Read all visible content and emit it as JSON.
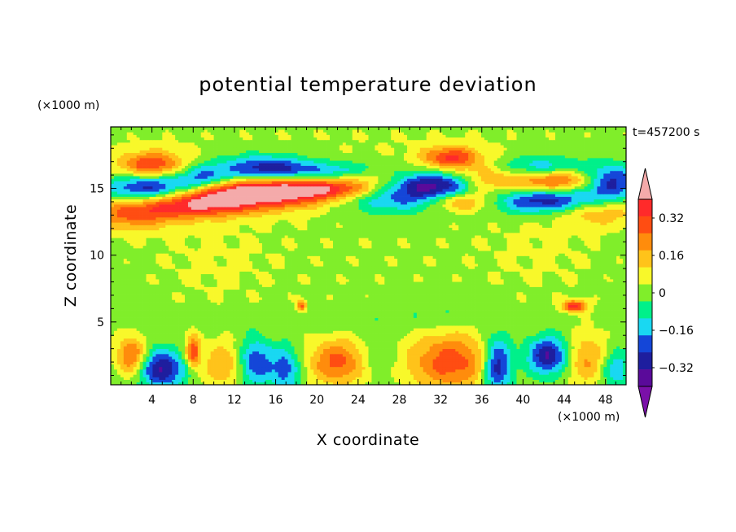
{
  "chart_data": {
    "type": "heatmap",
    "title": "potential temperature deviation",
    "xlabel": "X coordinate",
    "ylabel": "Z coordinate",
    "x_unit": "(×1000 m)",
    "y_unit": "(×1000 m)",
    "time_label": "t=457200 s",
    "xlim": [
      0,
      50
    ],
    "ylim": [
      0.3,
      19.6
    ],
    "x_ticks": [
      4,
      8,
      12,
      16,
      20,
      24,
      28,
      32,
      36,
      40,
      44,
      48
    ],
    "y_ticks": [
      5,
      10,
      15
    ],
    "colorbar": {
      "levels": [
        -0.48,
        -0.4,
        -0.32,
        -0.24,
        -0.16,
        -0.08,
        0,
        0.08,
        0.16,
        0.24,
        0.32,
        0.4,
        0.48
      ],
      "colors": [
        "#7a10a8",
        "#5a0a9a",
        "#1e1e9e",
        "#1446d8",
        "#19d8f2",
        "#00f08a",
        "#80ee2a",
        "#f8f82a",
        "#ffc31a",
        "#ff8c0c",
        "#ff4d12",
        "#ff2a2a",
        "#f4aaaa"
      ],
      "labels": [
        "0.32",
        "0.16",
        "0",
        "−0.16",
        "−0.32"
      ],
      "label_values": [
        0.32,
        0.16,
        0,
        -0.16,
        -0.32
      ]
    },
    "features": [
      {
        "x": 25,
        "z": 10,
        "sx": 30,
        "sz": 5,
        "a": 0.03
      },
      {
        "x": 10,
        "z": 9.5,
        "sx": 4,
        "sz": 2.5,
        "a": 0.025
      },
      {
        "x": 42,
        "z": 10.5,
        "sx": 4,
        "sz": 2.5,
        "a": 0.025
      },
      {
        "x": 25,
        "z": 18.5,
        "sx": 30,
        "sz": 1.2,
        "a": 0.03
      },
      {
        "x": 32,
        "z": 6,
        "sx": 3,
        "sz": 0.8,
        "a": -0.06
      },
      {
        "x": 22,
        "z": 5,
        "sx": 8,
        "sz": 0.5,
        "a": -0.05
      },
      {
        "x": 4,
        "z": 16.8,
        "sx": 2.2,
        "sz": 0.7,
        "a": 0.35
      },
      {
        "x": 4,
        "z": 15,
        "sx": 3,
        "sz": 0.7,
        "a": -0.45
      },
      {
        "x": 9,
        "z": 15.7,
        "sx": 2,
        "sz": 0.7,
        "a": -0.3
      },
      {
        "x": 14,
        "z": 14.7,
        "sx": 6,
        "sz": 0.8,
        "a": 0.55
      },
      {
        "x": 8,
        "z": 13.7,
        "sx": 4,
        "sz": 0.7,
        "a": 0.3
      },
      {
        "x": 2,
        "z": 13,
        "sx": 3,
        "sz": 0.8,
        "a": 0.25
      },
      {
        "x": 15,
        "z": 16.5,
        "sx": 3,
        "sz": 0.7,
        "a": -0.35
      },
      {
        "x": 22,
        "z": 16.3,
        "sx": 4,
        "sz": 0.5,
        "a": -0.2
      },
      {
        "x": 22,
        "z": 15,
        "sx": 4,
        "sz": 0.5,
        "a": 0.25
      },
      {
        "x": 27,
        "z": 14.3,
        "sx": 4,
        "sz": 0.8,
        "a": -0.25
      },
      {
        "x": 26,
        "z": 16,
        "sx": 2.5,
        "sz": 0.5,
        "a": 0.15
      },
      {
        "x": 33,
        "z": 17.3,
        "sx": 2,
        "sz": 0.6,
        "a": 0.35
      },
      {
        "x": 32,
        "z": 15.3,
        "sx": 3.5,
        "sz": 0.7,
        "a": -0.42
      },
      {
        "x": 36,
        "z": 15.5,
        "sx": 2.5,
        "sz": 0.8,
        "a": 0.3
      },
      {
        "x": 34,
        "z": 14,
        "sx": 2,
        "sz": 0.5,
        "a": 0.25
      },
      {
        "x": 42,
        "z": 16.5,
        "sx": 3,
        "sz": 0.6,
        "a": -0.3
      },
      {
        "x": 43,
        "z": 15.7,
        "sx": 3,
        "sz": 0.7,
        "a": 0.38
      },
      {
        "x": 43,
        "z": 14.1,
        "sx": 4,
        "sz": 0.7,
        "a": -0.42
      },
      {
        "x": 48.5,
        "z": 15.5,
        "sx": 1.8,
        "sz": 0.9,
        "a": -0.35
      },
      {
        "x": 47,
        "z": 13.5,
        "sx": 3,
        "sz": 0.8,
        "a": 0.25
      },
      {
        "x": 45,
        "z": 6.2,
        "sx": 0.8,
        "sz": 0.3,
        "a": 0.4
      },
      {
        "x": 18.5,
        "z": 6.2,
        "sx": 0.3,
        "sz": 0.3,
        "a": 0.3
      },
      {
        "x": 2,
        "z": 2.5,
        "sx": 1,
        "sz": 1,
        "a": 0.3
      },
      {
        "x": 5,
        "z": 1.5,
        "sx": 1.5,
        "sz": 1,
        "a": -0.38
      },
      {
        "x": 8,
        "z": 2.8,
        "sx": 0.5,
        "sz": 0.8,
        "a": 0.35
      },
      {
        "x": 11,
        "z": 1.8,
        "sx": 1.5,
        "sz": 1.2,
        "a": 0.2
      },
      {
        "x": 14,
        "z": 2,
        "sx": 1.2,
        "sz": 1.2,
        "a": -0.3
      },
      {
        "x": 17,
        "z": 1.5,
        "sx": 1,
        "sz": 1.2,
        "a": -0.25
      },
      {
        "x": 22,
        "z": 2,
        "sx": 2,
        "sz": 1.2,
        "a": 0.3
      },
      {
        "x": 26,
        "z": 2.5,
        "sx": 1.2,
        "sz": 1,
        "a": -0.1
      },
      {
        "x": 33,
        "z": 2,
        "sx": 3,
        "sz": 1.5,
        "a": 0.32
      },
      {
        "x": 37.5,
        "z": 1.8,
        "sx": 1,
        "sz": 1.5,
        "a": -0.4
      },
      {
        "x": 42.5,
        "z": 2.5,
        "sx": 1.5,
        "sz": 1,
        "a": -0.38
      },
      {
        "x": 46,
        "z": 2.2,
        "sx": 1.5,
        "sz": 1.3,
        "a": 0.22
      },
      {
        "x": 49,
        "z": 1.5,
        "sx": 1,
        "sz": 1,
        "a": -0.2
      }
    ]
  }
}
